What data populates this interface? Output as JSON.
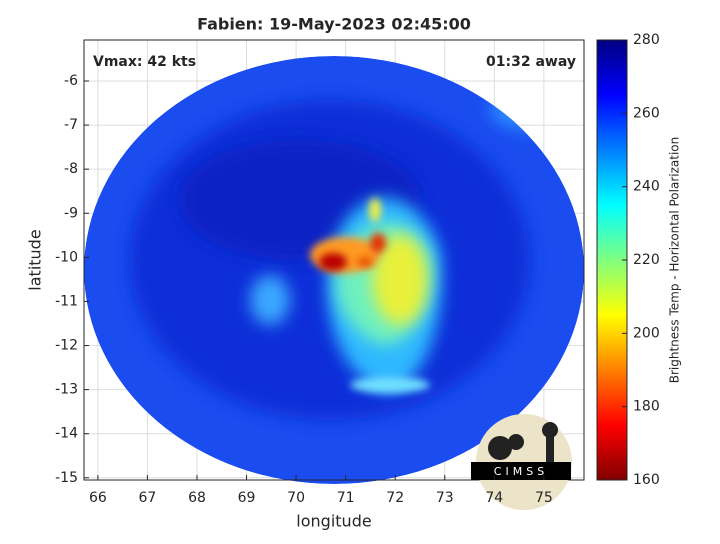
{
  "chart_data": {
    "type": "heatmap",
    "title": "Fabien: 19-May-2023 02:45:00",
    "annotations": [
      "Vmax: 42 kts",
      "01:32 away"
    ],
    "xlabel": "longitude",
    "ylabel": "latitude",
    "xlim": [
      65.72,
      75.81
    ],
    "xticks": [
      66,
      67,
      68,
      69,
      70,
      71,
      72,
      73,
      74,
      75
    ],
    "ylim": [
      -15.05,
      -5.07
    ],
    "yticks": [
      -6,
      -7,
      -8,
      -9,
      -10,
      -11,
      -12,
      -13,
      -14,
      -15
    ],
    "grid": true,
    "colorbar": {
      "label": "Brightness Temp - Horizontal Polarization",
      "lim": [
        160,
        280
      ],
      "ticks": [
        160,
        180,
        200,
        220,
        240,
        260,
        280
      ]
    },
    "logo": "CIMSS"
  }
}
